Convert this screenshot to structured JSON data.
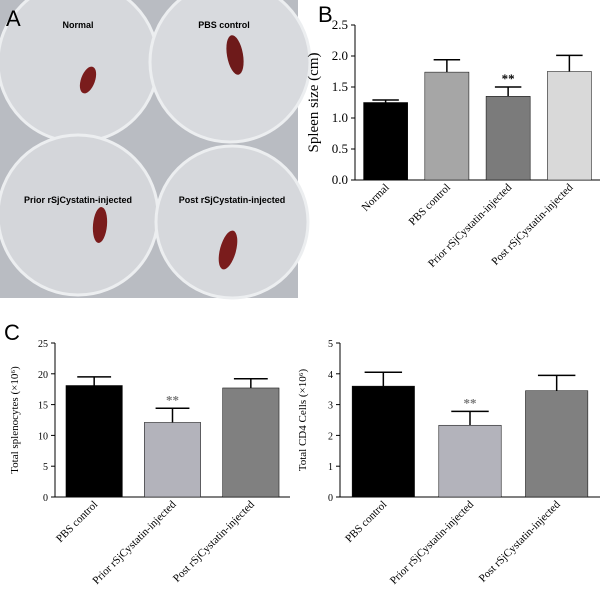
{
  "photo": {
    "panel_label": "A",
    "dish_labels": [
      "Normal",
      "PBS control",
      "Prior rSjCystatin-injected",
      "Post rSjCystatin-injected"
    ]
  },
  "chart_data": [
    {
      "type": "bar",
      "panel_label": "B",
      "y_label": "Spleen size (cm)",
      "categories": [
        "Normal",
        "PBS control",
        "Prior rSjCystatin-injected",
        "Post rSjCystatin-injected"
      ],
      "values": [
        1.25,
        1.74,
        1.35,
        1.75
      ],
      "errors": [
        0.04,
        0.2,
        0.15,
        0.26
      ],
      "significance": [
        null,
        null,
        "**",
        null
      ],
      "colors": [
        "#000000",
        "#a6a6a6",
        "#7b7b7b",
        "#d9d9d9"
      ],
      "ylim": [
        0,
        2.5
      ],
      "yticks": [
        {
          "value": 0,
          "label": "0.0"
        },
        {
          "value": 0.5,
          "label": "0.5"
        },
        {
          "value": 1,
          "label": "1.0"
        },
        {
          "value": 1.5,
          "label": "1.5"
        },
        {
          "value": 2,
          "label": "2.0"
        },
        {
          "value": 2.5,
          "label": "2.5"
        }
      ]
    },
    {
      "type": "bar",
      "panel_label": "C",
      "y_label": "Total splenocytes (×10⁶)",
      "categories": [
        "PBS control",
        "Prior rSjCystatin-injected",
        "Post rSjCystatin-injected"
      ],
      "values": [
        18.1,
        12.1,
        17.7
      ],
      "errors": [
        1.4,
        2.3,
        1.5
      ],
      "significance": [
        null,
        "**",
        null
      ],
      "colors": [
        "#000000",
        "#b3b3bb",
        "#808080"
      ],
      "ylim": [
        0,
        25
      ],
      "yticks": [
        0,
        5,
        10,
        15,
        20,
        25
      ]
    },
    {
      "type": "bar",
      "y_label": "Total CD4 Cells (×10⁶)",
      "categories": [
        "PBS control",
        "Prior rSjCystatin-injected",
        "Post rSjCystatin-injected"
      ],
      "values": [
        3.6,
        2.33,
        3.45
      ],
      "errors": [
        0.45,
        0.45,
        0.5
      ],
      "significance": [
        null,
        "**",
        null
      ],
      "colors": [
        "#000000",
        "#b3b3bb",
        "#808080"
      ],
      "ylim": [
        0,
        5
      ],
      "yticks": [
        0,
        1,
        2,
        3,
        4,
        5
      ]
    }
  ]
}
